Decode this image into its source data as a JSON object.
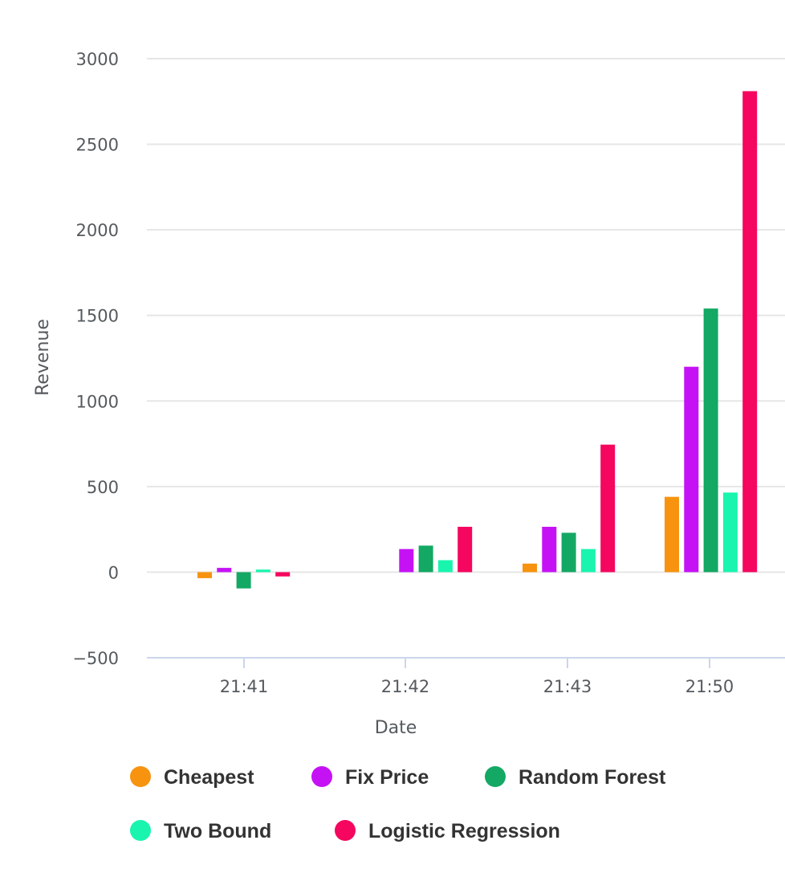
{
  "chart_data": {
    "type": "bar",
    "title": "",
    "xlabel": "Date",
    "ylabel": "Revenue",
    "categories": [
      "21:41",
      "21:42",
      "21:43",
      "21:50"
    ],
    "ylim": [
      -500,
      3000
    ],
    "yticks": [
      -500,
      0,
      500,
      1000,
      1500,
      2000,
      2500,
      3000
    ],
    "grid": true,
    "legend_position": "bottom",
    "series": [
      {
        "name": "Cheapest",
        "color": "#f7930f",
        "values": [
          -35,
          null,
          50,
          440
        ]
      },
      {
        "name": "Fix Price",
        "color": "#c512f5",
        "values": [
          25,
          135,
          265,
          1200
        ]
      },
      {
        "name": "Random Forest",
        "color": "#13a864",
        "values": [
          -95,
          155,
          230,
          1540
        ]
      },
      {
        "name": "Two Bound",
        "color": "#19f5ae",
        "values": [
          15,
          70,
          135,
          465
        ]
      },
      {
        "name": "Logistic Regression",
        "color": "#f5065f",
        "values": [
          -25,
          265,
          745,
          2810
        ]
      }
    ]
  }
}
